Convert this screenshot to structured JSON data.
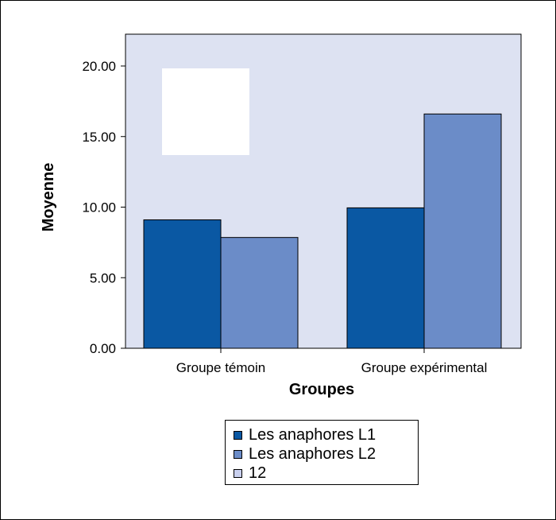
{
  "chart_data": {
    "type": "bar",
    "categories": [
      "Groupe témoin",
      "Groupe expérimental"
    ],
    "series": [
      {
        "name": "Les anaphores L1",
        "values": [
          9.1,
          9.95
        ],
        "color": "#0a58a3"
      },
      {
        "name": "Les anaphores L2",
        "values": [
          7.85,
          16.6
        ],
        "color": "#6b8cc8"
      }
    ],
    "legend_extra": [
      {
        "name": "12",
        "color": "#c9d0ee"
      }
    ],
    "xlabel": "Groupes",
    "ylabel": "Moyenne",
    "ylim": [
      0,
      20
    ],
    "yticks": [
      "0.00",
      "5.00",
      "10.00",
      "15.00",
      "20.00"
    ],
    "grid": false,
    "legend_position": "bottom",
    "plot_background": "#dde2f2"
  }
}
